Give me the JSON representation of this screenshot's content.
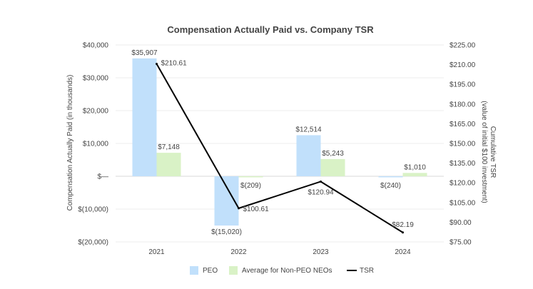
{
  "chart_data": {
    "type": "bar+line",
    "title": "Compensation Actually Paid vs. Company TSR",
    "categories": [
      "2021",
      "2022",
      "2023",
      "2024"
    ],
    "ylabel_left": "Compensation Actually Paid (in thousands)",
    "ylabel_right": [
      "Cumulative TSR",
      "(value of initial $100 investment)"
    ],
    "ylim_left": [
      -20000,
      40000
    ],
    "ylim_right": [
      75,
      225
    ],
    "left_ticks": [
      {
        "value": 40000,
        "label": "$40,000"
      },
      {
        "value": 30000,
        "label": "$30,000"
      },
      {
        "value": 20000,
        "label": "$20,000"
      },
      {
        "value": 10000,
        "label": "$10,000"
      },
      {
        "value": 0,
        "label": "$—"
      },
      {
        "value": -10000,
        "label": "$(10,000)"
      },
      {
        "value": -20000,
        "label": "$(20,000)"
      }
    ],
    "right_ticks": [
      {
        "value": 225,
        "label": "$225.00"
      },
      {
        "value": 210,
        "label": "$210.00"
      },
      {
        "value": 195,
        "label": "$195.00"
      },
      {
        "value": 180,
        "label": "$180.00"
      },
      {
        "value": 165,
        "label": "$165.00"
      },
      {
        "value": 150,
        "label": "$150.00"
      },
      {
        "value": 135,
        "label": "$135.00"
      },
      {
        "value": 120,
        "label": "$120.00"
      },
      {
        "value": 105,
        "label": "$105.00"
      },
      {
        "value": 90,
        "label": "$90.00"
      },
      {
        "value": 75,
        "label": "$75.00"
      }
    ],
    "series": [
      {
        "name": "PEO",
        "kind": "bar",
        "axis": "left",
        "color": "#c1e0fb",
        "values": [
          35907,
          -15020,
          12514,
          -240
        ],
        "labels": [
          "$35,907",
          "$(15,020)",
          "$12,514",
          "$(240)"
        ]
      },
      {
        "name": "Average for Non-PEO NEOs",
        "kind": "bar",
        "axis": "left",
        "color": "#d9f2c6",
        "values": [
          7148,
          -209,
          5243,
          1010
        ],
        "labels": [
          "$7,148",
          "$(209)",
          "$5,243",
          "$1,010"
        ]
      },
      {
        "name": "TSR",
        "kind": "line",
        "axis": "right",
        "color": "#000000",
        "values": [
          210.61,
          100.61,
          120.94,
          82.19
        ],
        "labels": [
          "$210.61",
          "$100.61",
          "$120.94",
          "$82.19"
        ]
      }
    ],
    "legend": [
      "PEO",
      "Average for Non-PEO NEOs",
      "TSR"
    ],
    "legend_position": "bottom",
    "grid": true
  }
}
